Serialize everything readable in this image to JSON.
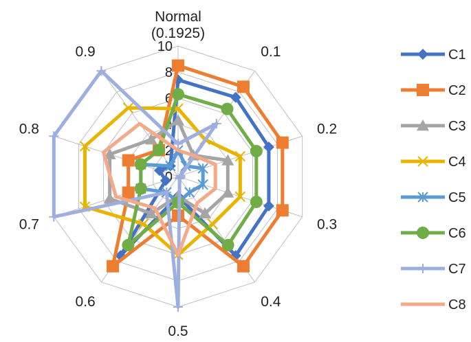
{
  "chart_data": {
    "type": "radar",
    "title": "",
    "categories": [
      "Normal\n(0.1925)",
      "0.1",
      "0.2",
      "0.3",
      "0.4",
      "0.5",
      "0.6",
      "0.7",
      "0.8",
      "0.9"
    ],
    "rlim": [
      0,
      10
    ],
    "ticks": [
      "0",
      "2",
      "4",
      "6",
      "8",
      "10"
    ],
    "grid": true,
    "legend_position": "right",
    "series": [
      {
        "name": "C1",
        "color": "#4472C4",
        "marker": "diamond",
        "values": [
          7.4,
          7.5,
          7.3,
          7.3,
          7.5,
          1.5,
          7.5,
          1.0,
          1.5,
          1.0
        ]
      },
      {
        "name": "C2",
        "color": "#ED7D31",
        "marker": "square",
        "values": [
          8.5,
          8.5,
          8.4,
          8.4,
          8.5,
          3.0,
          8.5,
          4.0,
          4.0,
          2.5
        ]
      },
      {
        "name": "C3",
        "color": "#A5A5A5",
        "marker": "triangle",
        "values": [
          4.3,
          2.0,
          4.0,
          4.0,
          3.5,
          1.5,
          3.5,
          5.5,
          5.5,
          3.5
        ]
      },
      {
        "name": "C4",
        "color": "#E8B400",
        "marker": "x",
        "values": [
          5.2,
          3.5,
          5.0,
          5.0,
          4.5,
          6.0,
          4.5,
          7.5,
          7.5,
          6.5
        ]
      },
      {
        "name": "C5",
        "color": "#5B9BD5",
        "marker": "asterisk",
        "values": [
          2.0,
          1.0,
          2.0,
          2.0,
          1.5,
          2.0,
          1.5,
          3.0,
          3.0,
          1.0
        ]
      },
      {
        "name": "C6",
        "color": "#70AD47",
        "marker": "circle",
        "values": [
          6.3,
          6.4,
          6.3,
          6.3,
          6.5,
          2.0,
          6.5,
          3.0,
          3.0,
          2.5
        ]
      },
      {
        "name": "C7",
        "color": "#9DAEDF",
        "marker": "plus",
        "values": [
          2.5,
          5.0,
          0.2,
          0.2,
          0.2,
          10.0,
          1.5,
          10.0,
          10.0,
          10.0
        ]
      },
      {
        "name": "C8",
        "color": "#F4A98A",
        "marker": "none",
        "values": [
          2.0,
          2.0,
          3.0,
          3.0,
          2.5,
          6.0,
          3.0,
          5.0,
          6.0,
          5.0
        ]
      }
    ]
  }
}
